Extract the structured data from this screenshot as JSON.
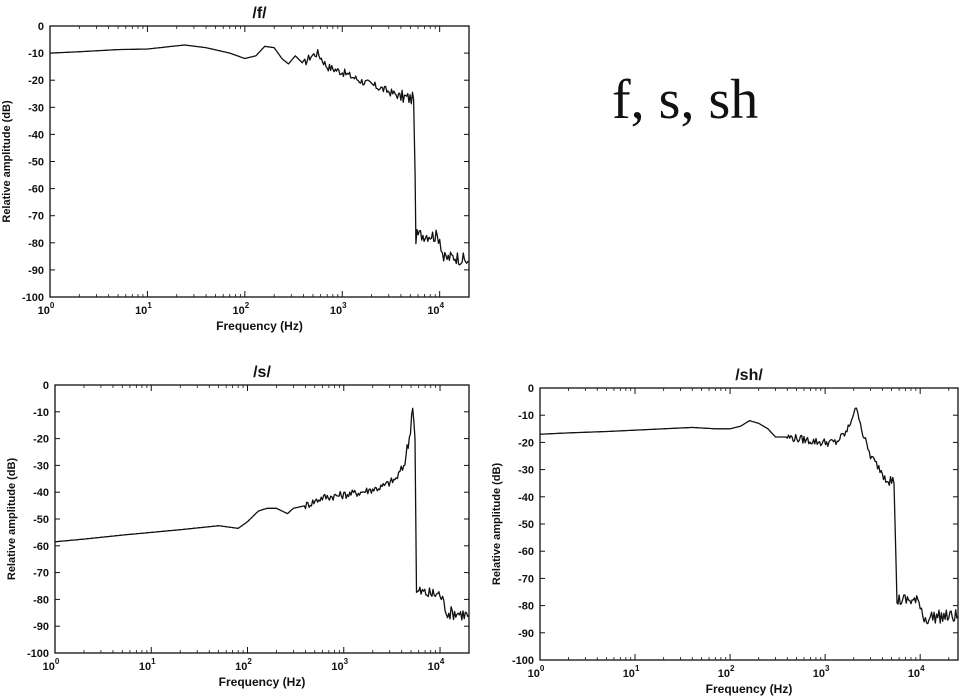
{
  "slide_title": "f, s, sh",
  "chart_data": [
    {
      "type": "line",
      "title": "/f/",
      "xlabel": "Frequency (Hz)",
      "ylabel": "Relative amplitude (dB)",
      "xscale": "log",
      "xlim": [
        1,
        20000
      ],
      "ylim": [
        -100,
        0
      ],
      "x_ticks": [
        1,
        10,
        100,
        1000,
        10000
      ],
      "x_tick_labels": [
        [
          "10",
          "0"
        ],
        [
          "10",
          "1"
        ],
        [
          "10",
          "2"
        ],
        [
          "10",
          "3"
        ],
        [
          "10",
          "4"
        ]
      ],
      "y_ticks": [
        0,
        -10,
        -20,
        -30,
        -40,
        -50,
        -60,
        -70,
        -80,
        -90,
        -100
      ],
      "grid": false,
      "series": [
        {
          "x": [
            1,
            2,
            5,
            10,
            24,
            40,
            70,
            100,
            130,
            160,
            200,
            240,
            280,
            330,
            400,
            480,
            560,
            700,
            1000,
            1500,
            2500,
            4000,
            5400,
            5600,
            5700,
            6000,
            8000,
            10000,
            11000,
            14000,
            17000,
            20000
          ],
          "y": [
            -10,
            -9.5,
            -8.7,
            -8.5,
            -7,
            -8,
            -10,
            -12,
            -11,
            -7.5,
            -8,
            -12,
            -14,
            -11,
            -14,
            -11,
            -10,
            -15,
            -17,
            -20,
            -23,
            -26,
            -27,
            -55,
            -78,
            -77,
            -77,
            -78,
            -86,
            -85,
            -86,
            -87
          ]
        }
      ]
    },
    {
      "type": "line",
      "title": "/s/",
      "xlabel": "Frequency (Hz)",
      "ylabel": "Relative amplitude (dB)",
      "xscale": "log",
      "xlim": [
        1,
        20000
      ],
      "ylim": [
        -100,
        0
      ],
      "x_ticks": [
        1,
        10,
        100,
        1000,
        10000
      ],
      "x_tick_labels": [
        [
          "10",
          "0"
        ],
        [
          "10",
          "1"
        ],
        [
          "10",
          "2"
        ],
        [
          "10",
          "3"
        ],
        [
          "10",
          "4"
        ]
      ],
      "y_ticks": [
        0,
        -10,
        -20,
        -30,
        -40,
        -50,
        -60,
        -70,
        -80,
        -90,
        -100
      ],
      "grid": false,
      "series": [
        {
          "x": [
            1,
            2,
            5,
            10,
            20,
            50,
            80,
            100,
            130,
            160,
            200,
            260,
            300,
            400,
            600,
            1000,
            1500,
            2500,
            3500,
            4200,
            4800,
            5200,
            5500,
            5700,
            6000,
            8000,
            10000,
            12000,
            15000,
            20000
          ],
          "y": [
            -58.5,
            -57.5,
            -56,
            -55,
            -54,
            -52.5,
            -53.5,
            -51,
            -47,
            -46,
            -46,
            -48,
            -46,
            -45,
            -42,
            -41,
            -40,
            -38,
            -35,
            -30,
            -20,
            -7,
            -20,
            -78,
            -77,
            -78,
            -78,
            -85,
            -85,
            -86
          ]
        }
      ]
    },
    {
      "type": "line",
      "title": "/sh/",
      "xlabel": "Frequency (Hz)",
      "ylabel": "Relative amplitude (dB)",
      "xscale": "log",
      "xlim": [
        1,
        25000
      ],
      "ylim": [
        -100,
        0
      ],
      "x_ticks": [
        1,
        10,
        100,
        1000,
        10000
      ],
      "x_tick_labels": [
        [
          "10",
          "0"
        ],
        [
          "10",
          "1"
        ],
        [
          "10",
          "2"
        ],
        [
          "10",
          "3"
        ],
        [
          "10",
          "4"
        ]
      ],
      "y_ticks": [
        0,
        -10,
        -20,
        -30,
        -40,
        -50,
        -60,
        -70,
        -80,
        -90,
        -100
      ],
      "grid": false,
      "series": [
        {
          "x": [
            1,
            2,
            5,
            10,
            20,
            40,
            70,
            100,
            130,
            160,
            200,
            250,
            300,
            400,
            600,
            900,
            1300,
            1700,
            2000,
            2200,
            2500,
            3000,
            4000,
            5300,
            5700,
            6000,
            8000,
            10000,
            11000,
            14000,
            20000,
            25000
          ],
          "y": [
            -17,
            -16.5,
            -16,
            -15.5,
            -15,
            -14.5,
            -15,
            -15,
            -14,
            -12,
            -13,
            -15,
            -18,
            -18,
            -19,
            -20,
            -20,
            -16,
            -9,
            -8,
            -17,
            -25,
            -31,
            -35,
            -78,
            -78,
            -78,
            -79,
            -85,
            -84,
            -84,
            -84
          ]
        }
      ]
    }
  ]
}
